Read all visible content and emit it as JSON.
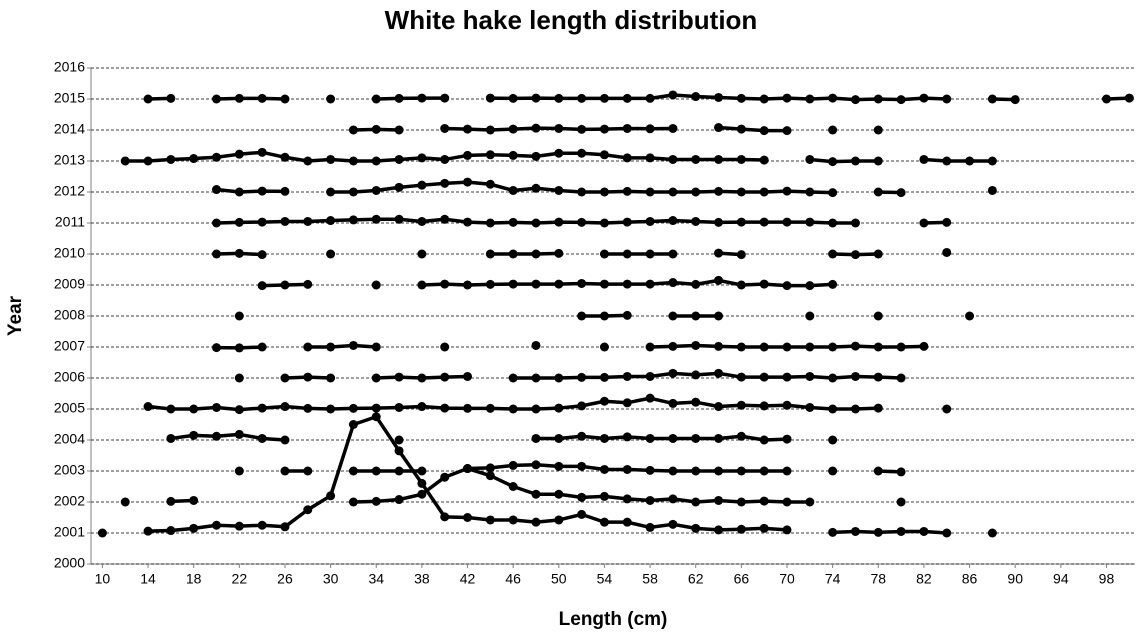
{
  "chart_data": {
    "type": "line",
    "title": "White hake length distribution",
    "x_label": "Length (cm)",
    "y_label": "Year",
    "color": "#000000",
    "grid": true,
    "xlim": [
      9,
      100.5
    ],
    "ylim": [
      2000,
      2016
    ],
    "xticks": [
      10,
      14,
      18,
      22,
      26,
      30,
      34,
      38,
      42,
      46,
      50,
      54,
      58,
      62,
      66,
      70,
      74,
      78,
      82,
      86,
      90,
      94,
      98
    ],
    "yticks": [
      2000,
      2001,
      2002,
      2003,
      2004,
      2005,
      2006,
      2007,
      2008,
      2009,
      2010,
      2011,
      2012,
      2013,
      2014,
      2015,
      2016
    ],
    "x": [
      10,
      12,
      14,
      16,
      18,
      20,
      22,
      24,
      26,
      28,
      30,
      32,
      34,
      36,
      38,
      40,
      42,
      44,
      46,
      48,
      50,
      52,
      54,
      56,
      58,
      60,
      62,
      64,
      66,
      68,
      70,
      72,
      74,
      76,
      78,
      80,
      82,
      84,
      86,
      88,
      90,
      92,
      94,
      96,
      98,
      100
    ],
    "series": [
      {
        "values": [
          2001.0,
          null,
          2001.06,
          2001.08,
          2001.15,
          2001.25,
          2001.22,
          2001.25,
          2001.2,
          2001.75,
          2002.2,
          2004.5,
          2004.75,
          2003.65,
          2002.6,
          2001.52,
          2001.5,
          2001.42,
          2001.42,
          2001.35,
          2001.42,
          2001.6,
          2001.35,
          2001.35,
          2001.18,
          2001.28,
          2001.15,
          2001.1,
          2001.12,
          2001.15,
          2001.1,
          null,
          2001.02,
          2001.05,
          2001.02,
          2001.05,
          2001.05,
          2001.0,
          null,
          2001.0,
          null,
          null,
          null,
          null,
          null,
          null
        ]
      },
      {
        "values": [
          null,
          2002.0,
          null,
          2002.02,
          2002.05,
          null,
          null,
          null,
          null,
          null,
          null,
          2002.0,
          2002.02,
          2002.08,
          2002.25,
          2002.8,
          2003.08,
          2002.85,
          2002.5,
          2002.25,
          2002.25,
          2002.15,
          2002.18,
          2002.1,
          2002.05,
          2002.1,
          2002.0,
          2002.05,
          2002.0,
          2002.03,
          2002.0,
          2002.0,
          null,
          null,
          null,
          2002.0,
          null,
          null,
          null,
          null,
          null,
          null,
          null,
          null,
          null,
          null
        ]
      },
      {
        "values": [
          null,
          null,
          null,
          null,
          null,
          null,
          2003.0,
          null,
          2003.0,
          2003.0,
          null,
          2003.0,
          2003.0,
          2003.0,
          2003.0,
          null,
          2003.08,
          2003.1,
          2003.18,
          2003.2,
          2003.15,
          2003.15,
          2003.05,
          2003.05,
          2003.02,
          2003.0,
          2003.0,
          2003.0,
          2003.0,
          2003.0,
          2003.0,
          null,
          2003.0,
          null,
          2003.0,
          2002.97,
          null,
          null,
          null,
          null,
          null,
          null,
          null,
          null,
          null,
          null
        ]
      },
      {
        "values": [
          null,
          null,
          null,
          2004.05,
          2004.15,
          2004.12,
          2004.18,
          2004.05,
          2004.0,
          null,
          null,
          null,
          null,
          2004.0,
          null,
          null,
          null,
          null,
          null,
          2004.05,
          2004.05,
          2004.12,
          2004.05,
          2004.1,
          2004.05,
          2004.05,
          2004.05,
          2004.05,
          2004.12,
          2004.0,
          2004.03,
          null,
          2004.0,
          null,
          null,
          null,
          null,
          null,
          null,
          null,
          null,
          null,
          null,
          null,
          null,
          null
        ]
      },
      {
        "values": [
          null,
          null,
          2005.08,
          2005.0,
          2005.0,
          2005.05,
          2004.98,
          2005.03,
          2005.08,
          2005.02,
          2005.0,
          2005.02,
          2005.03,
          2005.05,
          2005.08,
          2005.03,
          2005.02,
          2005.02,
          2005.0,
          2005.0,
          2005.03,
          2005.1,
          2005.25,
          2005.2,
          2005.35,
          2005.18,
          2005.22,
          2005.08,
          2005.12,
          2005.1,
          2005.12,
          2005.05,
          2005.0,
          2005.0,
          2005.03,
          null,
          null,
          2005.0,
          null,
          null,
          null,
          null,
          null,
          null,
          null,
          null
        ]
      },
      {
        "values": [
          null,
          null,
          null,
          null,
          null,
          null,
          2006.0,
          null,
          2006.0,
          2006.03,
          2006.0,
          null,
          2006.0,
          2006.03,
          2006.0,
          2006.03,
          2006.05,
          null,
          2006.0,
          2006.0,
          2006.0,
          2006.02,
          2006.02,
          2006.05,
          2006.05,
          2006.15,
          2006.1,
          2006.15,
          2006.03,
          2006.03,
          2006.03,
          2006.05,
          2006.0,
          2006.05,
          2006.03,
          2006.0,
          null,
          null,
          null,
          null,
          null,
          null,
          null,
          null,
          null,
          null
        ]
      },
      {
        "values": [
          null,
          null,
          null,
          null,
          null,
          2006.98,
          2006.97,
          2007.0,
          null,
          2007.0,
          2007.0,
          2007.05,
          2007.0,
          null,
          null,
          2007.0,
          null,
          null,
          null,
          2007.05,
          null,
          null,
          2007.0,
          null,
          2007.0,
          2007.02,
          2007.05,
          2007.02,
          2007.0,
          2007.0,
          2007.0,
          2007.0,
          2007.0,
          2007.03,
          2007.0,
          2007.0,
          2007.02,
          null,
          null,
          null,
          null,
          null,
          null,
          null,
          null,
          null
        ]
      },
      {
        "values": [
          null,
          null,
          null,
          null,
          null,
          null,
          2008.0,
          null,
          null,
          null,
          null,
          null,
          null,
          null,
          null,
          null,
          null,
          null,
          null,
          null,
          null,
          2008.0,
          2008.0,
          2008.02,
          null,
          2008.0,
          2008.0,
          2008.0,
          null,
          null,
          null,
          2008.0,
          null,
          null,
          2008.0,
          null,
          null,
          null,
          2008.0,
          null,
          null,
          null,
          null,
          null,
          null,
          null
        ]
      },
      {
        "values": [
          null,
          null,
          null,
          null,
          null,
          null,
          null,
          2008.98,
          2009.0,
          2009.02,
          null,
          null,
          2009.0,
          null,
          2009.0,
          2009.03,
          2009.0,
          2009.02,
          2009.03,
          2009.03,
          2009.03,
          2009.05,
          2009.03,
          2009.03,
          2009.03,
          2009.08,
          2009.02,
          2009.15,
          2009.0,
          2009.03,
          2008.98,
          2008.98,
          2009.02,
          null,
          null,
          null,
          null,
          null,
          null,
          null,
          null,
          null,
          null,
          null,
          null,
          null
        ]
      },
      {
        "values": [
          null,
          null,
          null,
          null,
          null,
          2010.0,
          2010.02,
          2009.98,
          null,
          null,
          2010.0,
          null,
          null,
          null,
          2010.0,
          null,
          null,
          2010.0,
          2010.0,
          2010.0,
          2010.02,
          null,
          2010.0,
          2010.0,
          2010.0,
          2010.0,
          null,
          2010.03,
          2009.98,
          null,
          null,
          null,
          2010.0,
          2009.98,
          2010.0,
          null,
          null,
          2010.05,
          null,
          null,
          null,
          null,
          null,
          null,
          null,
          null
        ]
      },
      {
        "values": [
          null,
          null,
          null,
          null,
          null,
          2011.0,
          2011.02,
          2011.03,
          2011.05,
          2011.05,
          2011.08,
          2011.1,
          2011.12,
          2011.12,
          2011.05,
          2011.12,
          2011.03,
          2011.0,
          2011.02,
          2011.0,
          2011.03,
          2011.02,
          2011.0,
          2011.03,
          2011.05,
          2011.08,
          2011.05,
          2011.02,
          2011.03,
          2011.03,
          2011.03,
          2011.03,
          2011.0,
          2011.0,
          null,
          null,
          2011.0,
          2011.02,
          null,
          null,
          null,
          null,
          null,
          null,
          null,
          null
        ]
      },
      {
        "values": [
          null,
          null,
          null,
          null,
          null,
          2012.08,
          2012.0,
          2012.03,
          2012.02,
          null,
          2012.0,
          2012.0,
          2012.05,
          2012.15,
          2012.22,
          2012.28,
          2012.32,
          2012.25,
          2012.05,
          2012.12,
          2012.05,
          2012.0,
          2012.0,
          2012.02,
          2012.0,
          2012.0,
          2012.0,
          2012.02,
          2012.0,
          2012.0,
          2012.03,
          2012.0,
          2011.98,
          null,
          2012.0,
          2011.98,
          null,
          null,
          null,
          2012.05,
          null,
          null,
          null,
          null,
          null,
          null
        ]
      },
      {
        "values": [
          null,
          2013.0,
          2013.0,
          2013.05,
          2013.08,
          2013.12,
          2013.22,
          2013.28,
          2013.12,
          2013.0,
          2013.05,
          2013.0,
          2013.0,
          2013.05,
          2013.1,
          2013.05,
          2013.18,
          2013.2,
          2013.18,
          2013.15,
          2013.25,
          2013.25,
          2013.2,
          2013.1,
          2013.1,
          2013.05,
          2013.05,
          2013.05,
          2013.05,
          2013.03,
          null,
          2013.05,
          2012.98,
          2013.0,
          2013.0,
          null,
          2013.05,
          2013.0,
          2013.0,
          2013.0,
          null,
          null,
          null,
          null,
          null,
          null
        ]
      },
      {
        "values": [
          null,
          null,
          null,
          null,
          null,
          null,
          null,
          null,
          null,
          null,
          null,
          2014.0,
          2014.02,
          2014.0,
          null,
          2014.05,
          2014.03,
          2014.0,
          2014.03,
          2014.06,
          2014.05,
          2014.02,
          2014.03,
          2014.05,
          2014.04,
          2014.05,
          null,
          2014.08,
          2014.03,
          2013.98,
          2013.98,
          null,
          2014.0,
          null,
          2014.0,
          null,
          null,
          null,
          null,
          null,
          null,
          null,
          null,
          null,
          null,
          null
        ]
      },
      {
        "values": [
          null,
          null,
          2015.0,
          2015.02,
          null,
          2015.0,
          2015.02,
          2015.02,
          2015.0,
          null,
          2015.0,
          null,
          2015.0,
          2015.02,
          2015.03,
          2015.03,
          null,
          2015.03,
          2015.02,
          2015.03,
          2015.02,
          2015.02,
          2015.02,
          2015.02,
          2015.02,
          2015.13,
          2015.08,
          2015.05,
          2015.02,
          2015.0,
          2015.03,
          2015.0,
          2015.03,
          2014.98,
          2015.0,
          2014.98,
          2015.03,
          2015.0,
          null,
          2015.0,
          2014.98,
          null,
          null,
          null,
          2015.0,
          2015.03
        ]
      }
    ]
  }
}
